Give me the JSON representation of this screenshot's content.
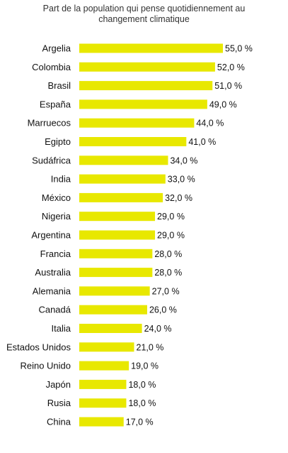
{
  "chart_data": {
    "type": "bar",
    "orientation": "horizontal",
    "title": "Part de la population qui pense quotidiennement au changement climatique",
    "title_lines": [
      "Part de la population qui pense quotidiennement au",
      "changement climatique"
    ],
    "categories": [
      "Argelia",
      "Colombia",
      "Brasil",
      "España",
      "Marruecos",
      "Egipto",
      "Sudáfrica",
      "India",
      "México",
      "Nigeria",
      "Argentina",
      "Francia",
      "Australia",
      "Alemania",
      "Canadá",
      "Italia",
      "Estados Unidos",
      "Reino Unido",
      "Japón",
      "Rusia",
      "China"
    ],
    "values": [
      55,
      52,
      51,
      49,
      44,
      41,
      34,
      33,
      32,
      29,
      29,
      28,
      28,
      27,
      26,
      24,
      21,
      19,
      18,
      18,
      17
    ],
    "value_labels": [
      "55,0 %",
      "52,0 %",
      "51,0 %",
      "49,0 %",
      "44,0 %",
      "41,0 %",
      "34,0 %",
      "33,0 %",
      "32,0 %",
      "29,0 %",
      "29,0 %",
      "28,0 %",
      "28,0 %",
      "27,0 %",
      "26,0 %",
      "24,0 %",
      "21,0 %",
      "19,0 %",
      "18,0 %",
      "18,0 %",
      "17,0 %"
    ],
    "unit": "%",
    "xlim": [
      0,
      55
    ],
    "xlabel": "",
    "ylabel": "",
    "grid": false,
    "legend": "none",
    "colors": {
      "bar": "#e8e800",
      "text": "#111111",
      "title": "#333333",
      "background": "#ffffff"
    }
  }
}
